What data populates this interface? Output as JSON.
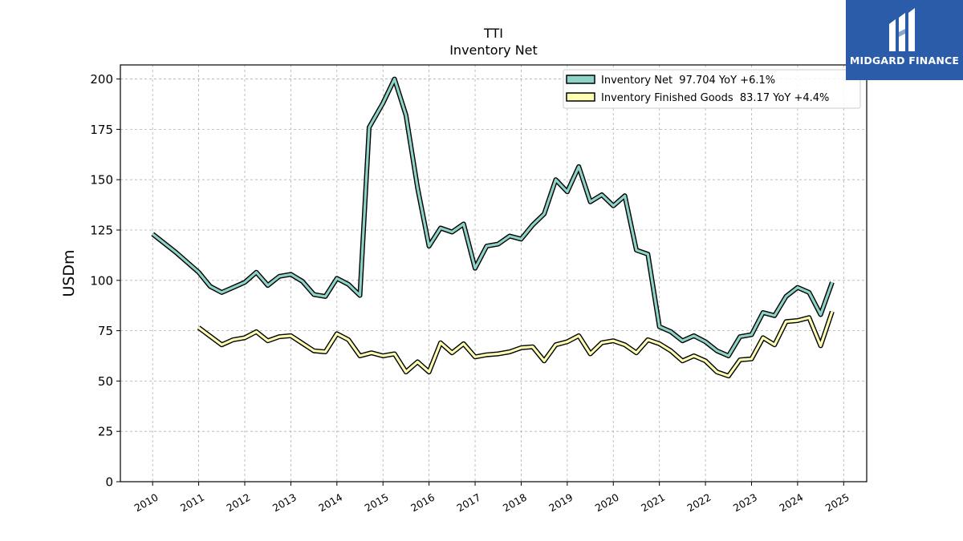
{
  "brand": {
    "name": "MIDGARD FINANCE",
    "color": "#2a5caa"
  },
  "chart_data": {
    "type": "line",
    "title": "TTI",
    "subtitle": "Inventory Net",
    "ylabel": "USDm",
    "xlabel": "",
    "ylim": [
      0,
      207
    ],
    "xlim": [
      2009.3,
      2025.5
    ],
    "yticks": [
      "0",
      "25",
      "50",
      "75",
      "100",
      "125",
      "150",
      "175",
      "200"
    ],
    "xticks": [
      "2010",
      "2011",
      "2012",
      "2013",
      "2014",
      "2015",
      "2016",
      "2017",
      "2018",
      "2019",
      "2020",
      "2021",
      "2022",
      "2023",
      "2024",
      "2025"
    ],
    "grid": true,
    "legend_position": "top-right",
    "series": [
      {
        "name": "Inventory Net  97.704 YoY +6.1%",
        "color": "#8dd3c7",
        "points": [
          [
            2010.0,
            123
          ],
          [
            2010.5,
            114
          ],
          [
            2011.0,
            104
          ],
          [
            2011.25,
            97
          ],
          [
            2011.5,
            94
          ],
          [
            2011.75,
            96.5
          ],
          [
            2012.0,
            99
          ],
          [
            2012.25,
            104
          ],
          [
            2012.5,
            97.5
          ],
          [
            2012.75,
            102
          ],
          [
            2013.0,
            103
          ],
          [
            2013.25,
            99.5
          ],
          [
            2013.5,
            93
          ],
          [
            2013.75,
            92
          ],
          [
            2014.0,
            101
          ],
          [
            2014.25,
            98
          ],
          [
            2014.5,
            92.5
          ],
          [
            2014.7,
            176
          ],
          [
            2015.0,
            188
          ],
          [
            2015.25,
            200
          ],
          [
            2015.5,
            182
          ],
          [
            2015.75,
            146
          ],
          [
            2016.0,
            117
          ],
          [
            2016.25,
            126
          ],
          [
            2016.5,
            124
          ],
          [
            2016.75,
            128
          ],
          [
            2017.0,
            106
          ],
          [
            2017.25,
            117
          ],
          [
            2017.5,
            118
          ],
          [
            2017.75,
            122
          ],
          [
            2018.0,
            120.5
          ],
          [
            2018.25,
            127.5
          ],
          [
            2018.5,
            133
          ],
          [
            2018.75,
            150
          ],
          [
            2019.0,
            144
          ],
          [
            2019.25,
            156.5
          ],
          [
            2019.5,
            139
          ],
          [
            2019.75,
            142.5
          ],
          [
            2020.0,
            137
          ],
          [
            2020.25,
            142
          ],
          [
            2020.5,
            115
          ],
          [
            2020.75,
            113
          ],
          [
            2021.0,
            77
          ],
          [
            2021.25,
            74.5
          ],
          [
            2021.5,
            70
          ],
          [
            2021.75,
            72.5
          ],
          [
            2022.0,
            69.5
          ],
          [
            2022.25,
            65
          ],
          [
            2022.5,
            62.5
          ],
          [
            2022.75,
            72
          ],
          [
            2023.0,
            73
          ],
          [
            2023.25,
            84
          ],
          [
            2023.5,
            82.5
          ],
          [
            2023.75,
            92
          ],
          [
            2024.0,
            96.5
          ],
          [
            2024.25,
            94
          ],
          [
            2024.5,
            83
          ],
          [
            2024.75,
            99
          ]
        ]
      },
      {
        "name": "Inventory Finished Goods  83.17 YoY +4.4%",
        "color": "#ffffb3",
        "points": [
          [
            2011.0,
            76.5
          ],
          [
            2011.5,
            68
          ],
          [
            2011.75,
            70.5
          ],
          [
            2012.0,
            71.5
          ],
          [
            2012.25,
            74.5
          ],
          [
            2012.5,
            70
          ],
          [
            2012.75,
            72
          ],
          [
            2013.0,
            72.5
          ],
          [
            2013.5,
            65
          ],
          [
            2013.75,
            64.5
          ],
          [
            2014.0,
            73.5
          ],
          [
            2014.25,
            70.5
          ],
          [
            2014.5,
            62.5
          ],
          [
            2014.75,
            64
          ],
          [
            2015.0,
            62.5
          ],
          [
            2015.25,
            63.5
          ],
          [
            2015.5,
            54.5
          ],
          [
            2015.75,
            59.5
          ],
          [
            2016.0,
            54.5
          ],
          [
            2016.25,
            69
          ],
          [
            2016.5,
            64
          ],
          [
            2016.75,
            68.5
          ],
          [
            2017.0,
            62
          ],
          [
            2017.25,
            63
          ],
          [
            2017.5,
            63.5
          ],
          [
            2017.75,
            64.5
          ],
          [
            2018.0,
            66.5
          ],
          [
            2018.25,
            67
          ],
          [
            2018.5,
            60
          ],
          [
            2018.75,
            68
          ],
          [
            2019.0,
            69.5
          ],
          [
            2019.25,
            72.5
          ],
          [
            2019.5,
            63.5
          ],
          [
            2019.75,
            69
          ],
          [
            2020.0,
            70
          ],
          [
            2020.25,
            68
          ],
          [
            2020.5,
            64
          ],
          [
            2020.75,
            70.5
          ],
          [
            2021.0,
            68.5
          ],
          [
            2021.25,
            65
          ],
          [
            2021.5,
            60
          ],
          [
            2021.75,
            62.5
          ],
          [
            2022.0,
            60
          ],
          [
            2022.25,
            54.5
          ],
          [
            2022.5,
            52.5
          ],
          [
            2022.75,
            60.5
          ],
          [
            2023.0,
            61
          ],
          [
            2023.25,
            71.5
          ],
          [
            2023.5,
            68
          ],
          [
            2023.75,
            79.5
          ],
          [
            2024.0,
            80
          ],
          [
            2024.25,
            81.5
          ],
          [
            2024.5,
            67.5
          ],
          [
            2024.75,
            84.5
          ]
        ]
      }
    ]
  }
}
